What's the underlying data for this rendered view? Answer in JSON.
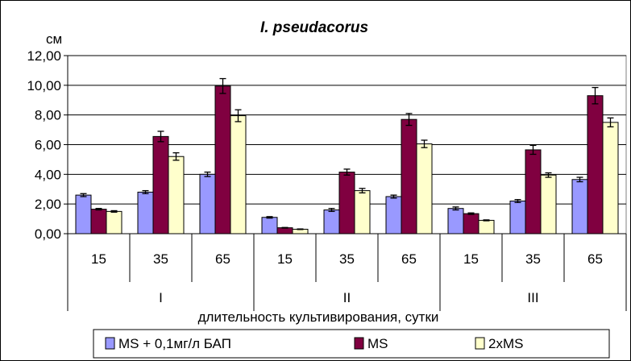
{
  "chart_data": {
    "type": "bar",
    "title": "I. pseudacorus",
    "ylabel": "см",
    "xlabel": "длительность культивирования, сутки",
    "ylim": [
      0,
      12
    ],
    "yticks": [
      "0,00",
      "2,00",
      "4,00",
      "6,00",
      "8,00",
      "10,00",
      "12,00"
    ],
    "groups": [
      "I",
      "II",
      "III"
    ],
    "categories": [
      "15",
      "35",
      "65",
      "15",
      "35",
      "65",
      "15",
      "35",
      "65"
    ],
    "series": [
      {
        "name": "MS + 0,1мг/л БАП",
        "color": "#9999ff",
        "values": [
          2.6,
          2.8,
          4.0,
          1.1,
          1.6,
          2.5,
          1.7,
          2.2,
          3.65
        ],
        "errors": [
          0.1,
          0.1,
          0.15,
          0.05,
          0.1,
          0.1,
          0.1,
          0.1,
          0.15
        ]
      },
      {
        "name": "MS",
        "color": "#800040",
        "values": [
          1.65,
          6.55,
          9.95,
          0.4,
          4.15,
          7.7,
          1.35,
          5.65,
          9.3
        ],
        "errors": [
          0.05,
          0.35,
          0.5,
          0.02,
          0.2,
          0.4,
          0.05,
          0.3,
          0.55
        ]
      },
      {
        "name": "2xMS",
        "color": "#ffffcc",
        "values": [
          1.5,
          5.2,
          7.95,
          0.3,
          2.9,
          6.05,
          0.9,
          3.95,
          7.5
        ],
        "errors": [
          0.05,
          0.25,
          0.4,
          0.02,
          0.15,
          0.25,
          0.03,
          0.15,
          0.3
        ]
      }
    ],
    "grid": true,
    "legend_position": "bottom"
  }
}
